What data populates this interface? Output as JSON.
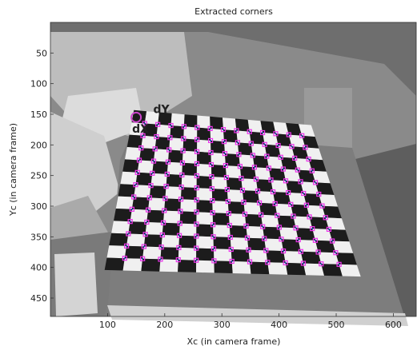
{
  "chart_data": {
    "type": "scatter",
    "title": "Extracted corners",
    "xlabel": "Xc (in camera frame)",
    "ylabel": "Yc (in camera frame)",
    "xlim": [
      0,
      640
    ],
    "ylim": [
      480,
      0
    ],
    "x_ticks": [
      100,
      200,
      300,
      400,
      500,
      600
    ],
    "y_ticks": [
      50,
      100,
      150,
      200,
      250,
      300,
      350,
      400,
      450
    ],
    "grid": false,
    "background": "grayscale photograph of a checkerboard calibration target on a table",
    "grid_corners": {
      "rows": 12,
      "cols": 13,
      "top_left": [
        165,
        165
      ],
      "top_right": [
        440,
        185
      ],
      "bottom_left": [
        130,
        385
      ],
      "bottom_right": [
        505,
        395
      ]
    },
    "origin_marker": {
      "x": 150,
      "y": 155
    },
    "annotations": [
      {
        "text": "dY",
        "x": 180,
        "y": 148
      },
      {
        "text": "dX",
        "x": 143,
        "y": 180
      },
      {
        "text": "O",
        "x": 152,
        "y": 157
      }
    ],
    "colors": {
      "corner_marker": "#ee33ee",
      "corner_center": "#2233cc",
      "label_green": "#44dd22",
      "origin": "#cc44cc"
    }
  }
}
